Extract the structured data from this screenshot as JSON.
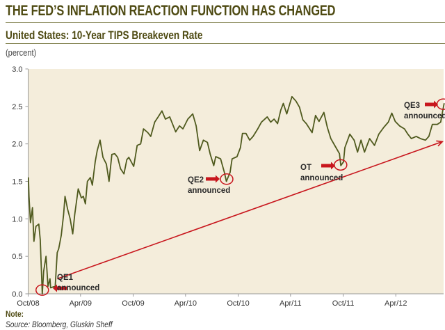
{
  "header": {
    "title": "THE FED’S INFLATION REACTION FUNCTION HAS CHANGED",
    "subtitle": "United States: 10-Year TIPS Breakeven Rate",
    "unit_label": "(percent)"
  },
  "footer": {
    "note": "Note:",
    "source": "Source: Bloomberg, Gluskin Sheff"
  },
  "colors": {
    "title": "#4e4a12",
    "plot_background": "#f4eddb",
    "series_line": "#4f5a1e",
    "annotation_red": "#c8161d"
  },
  "chart_data": {
    "type": "line",
    "title": "United States: 10-Year TIPS Breakeven Rate",
    "ylabel": "(percent)",
    "xlabel": "",
    "ylim": [
      0,
      3.0
    ],
    "xlim": [
      "2008-10-01",
      "2012-09-16"
    ],
    "grid": false,
    "y_ticks": [
      "0.0",
      "0.5",
      "1.0",
      "1.5",
      "2.0",
      "2.5",
      "3.0"
    ],
    "x_ticks": [
      {
        "label": "Oct/08",
        "date": "2008-10-01"
      },
      {
        "label": "Apr/09",
        "date": "2009-04-01"
      },
      {
        "label": "Oct/09",
        "date": "2009-10-01"
      },
      {
        "label": "Apr/10",
        "date": "2010-04-01"
      },
      {
        "label": "Oct/10",
        "date": "2010-10-01"
      },
      {
        "label": "Apr/11",
        "date": "2011-04-01"
      },
      {
        "label": "Oct/11",
        "date": "2011-10-01"
      },
      {
        "label": "Apr/12",
        "date": "2012-04-01"
      }
    ],
    "series": [
      {
        "x": [
          "2008-10-02",
          "2008-10-04",
          "2008-10-09",
          "2008-10-16",
          "2008-10-21",
          "2008-10-28",
          "2008-11-07",
          "2008-11-12",
          "2008-11-19",
          "2008-11-24",
          "2008-12-02",
          "2008-12-09",
          "2008-12-16",
          "2008-12-18",
          "2009-01-03",
          "2009-01-10",
          "2009-01-15",
          "2009-01-24",
          "2009-02-01",
          "2009-02-06",
          "2009-02-15",
          "2009-02-24",
          "2009-03-05",
          "2009-03-12",
          "2009-03-24",
          "2009-04-04",
          "2009-04-11",
          "2009-04-18",
          "2009-04-25",
          "2009-05-05",
          "2009-05-12",
          "2009-05-22",
          "2009-05-29",
          "2009-06-08",
          "2009-06-18",
          "2009-06-30",
          "2009-07-09",
          "2009-07-19",
          "2009-07-29",
          "2009-08-08",
          "2009-08-18",
          "2009-08-30",
          "2009-09-09",
          "2009-09-16",
          "2009-10-03",
          "2009-10-15",
          "2009-10-27",
          "2009-11-06",
          "2009-11-21",
          "2009-12-01",
          "2009-12-15",
          "2009-12-27",
          "2010-01-09",
          "2010-01-21",
          "2010-02-05",
          "2010-02-26",
          "2010-03-11",
          "2010-03-23",
          "2010-04-09",
          "2010-04-26",
          "2010-05-08",
          "2010-05-20",
          "2010-06-02",
          "2010-06-16",
          "2010-06-26",
          "2010-07-08",
          "2010-07-15",
          "2010-08-01",
          "2010-08-14",
          "2010-08-21",
          "2010-09-03",
          "2010-09-10",
          "2010-09-27",
          "2010-10-09",
          "2010-10-16",
          "2010-10-28",
          "2010-11-10",
          "2010-11-22",
          "2010-12-08",
          "2010-12-21",
          "2011-01-10",
          "2011-01-22",
          "2011-02-03",
          "2011-02-15",
          "2011-02-26",
          "2011-03-07",
          "2011-03-19",
          "2011-04-06",
          "2011-04-20",
          "2011-05-02",
          "2011-05-14",
          "2011-05-26",
          "2011-06-15",
          "2011-06-27",
          "2011-07-09",
          "2011-07-26",
          "2011-08-07",
          "2011-08-19",
          "2011-09-06",
          "2011-09-18",
          "2011-09-23",
          "2011-10-02",
          "2011-10-07",
          "2011-10-24",
          "2011-11-08",
          "2011-11-20",
          "2011-12-02",
          "2011-12-14",
          "2012-01-01",
          "2012-01-18",
          "2012-02-02",
          "2012-02-19",
          "2012-03-06",
          "2012-03-18",
          "2012-03-30",
          "2012-04-14",
          "2012-05-01",
          "2012-05-13",
          "2012-05-25",
          "2012-06-11",
          "2012-06-26",
          "2012-07-13",
          "2012-07-25",
          "2012-08-06",
          "2012-08-23",
          "2012-09-04",
          "2012-09-11",
          "2012-09-16"
        ],
        "y": [
          1.55,
          1.3,
          0.95,
          1.15,
          0.7,
          0.9,
          0.93,
          0.72,
          0.0,
          0.3,
          0.5,
          0.1,
          0.2,
          0.08,
          0.1,
          0.55,
          0.6,
          0.78,
          1.05,
          1.3,
          1.13,
          1.0,
          0.8,
          1.06,
          1.4,
          1.28,
          1.3,
          1.2,
          1.5,
          1.55,
          1.45,
          1.76,
          1.91,
          2.05,
          1.82,
          1.73,
          1.5,
          1.86,
          1.87,
          1.82,
          1.67,
          1.6,
          1.79,
          1.82,
          1.7,
          1.98,
          2.0,
          2.2,
          2.15,
          2.1,
          2.29,
          2.36,
          2.44,
          2.33,
          2.36,
          2.16,
          2.24,
          2.2,
          2.33,
          2.4,
          2.24,
          1.91,
          2.05,
          2.02,
          1.86,
          1.71,
          1.83,
          1.8,
          1.62,
          1.5,
          1.62,
          1.8,
          1.83,
          1.95,
          2.14,
          2.14,
          2.05,
          2.1,
          2.2,
          2.29,
          2.36,
          2.29,
          2.33,
          2.27,
          2.45,
          2.54,
          2.4,
          2.63,
          2.57,
          2.49,
          2.32,
          2.27,
          2.15,
          2.38,
          2.3,
          2.42,
          2.22,
          2.07,
          1.95,
          1.87,
          1.71,
          1.76,
          1.95,
          2.13,
          2.05,
          1.89,
          2.05,
          1.89,
          2.07,
          1.98,
          2.13,
          2.22,
          2.29,
          2.41,
          2.3,
          2.24,
          2.2,
          2.13,
          2.07,
          2.1,
          2.07,
          2.05,
          2.1,
          2.26,
          2.26,
          2.29,
          2.44,
          2.54
        ]
      }
    ],
    "annotations": [
      {
        "line1": "QE1",
        "line2": "announced",
        "date": "2008-11-19",
        "value": 0.05,
        "arrow": "left"
      },
      {
        "line1": "QE2",
        "line2": "announced",
        "date": "2010-08-22",
        "value": 1.53,
        "arrow": "right"
      },
      {
        "line1": "OT",
        "line2": "announced",
        "date": "2011-09-22",
        "value": 1.72,
        "arrow": "right"
      },
      {
        "line1": "QE3",
        "line2": "announced",
        "date": "2012-09-13",
        "value": 2.53,
        "arrow": "right"
      }
    ],
    "trend_arrow": {
      "start": {
        "date": "2009-01-10",
        "value": 0.2
      },
      "end": {
        "date": "2012-09-10",
        "value": 2.03
      }
    }
  }
}
